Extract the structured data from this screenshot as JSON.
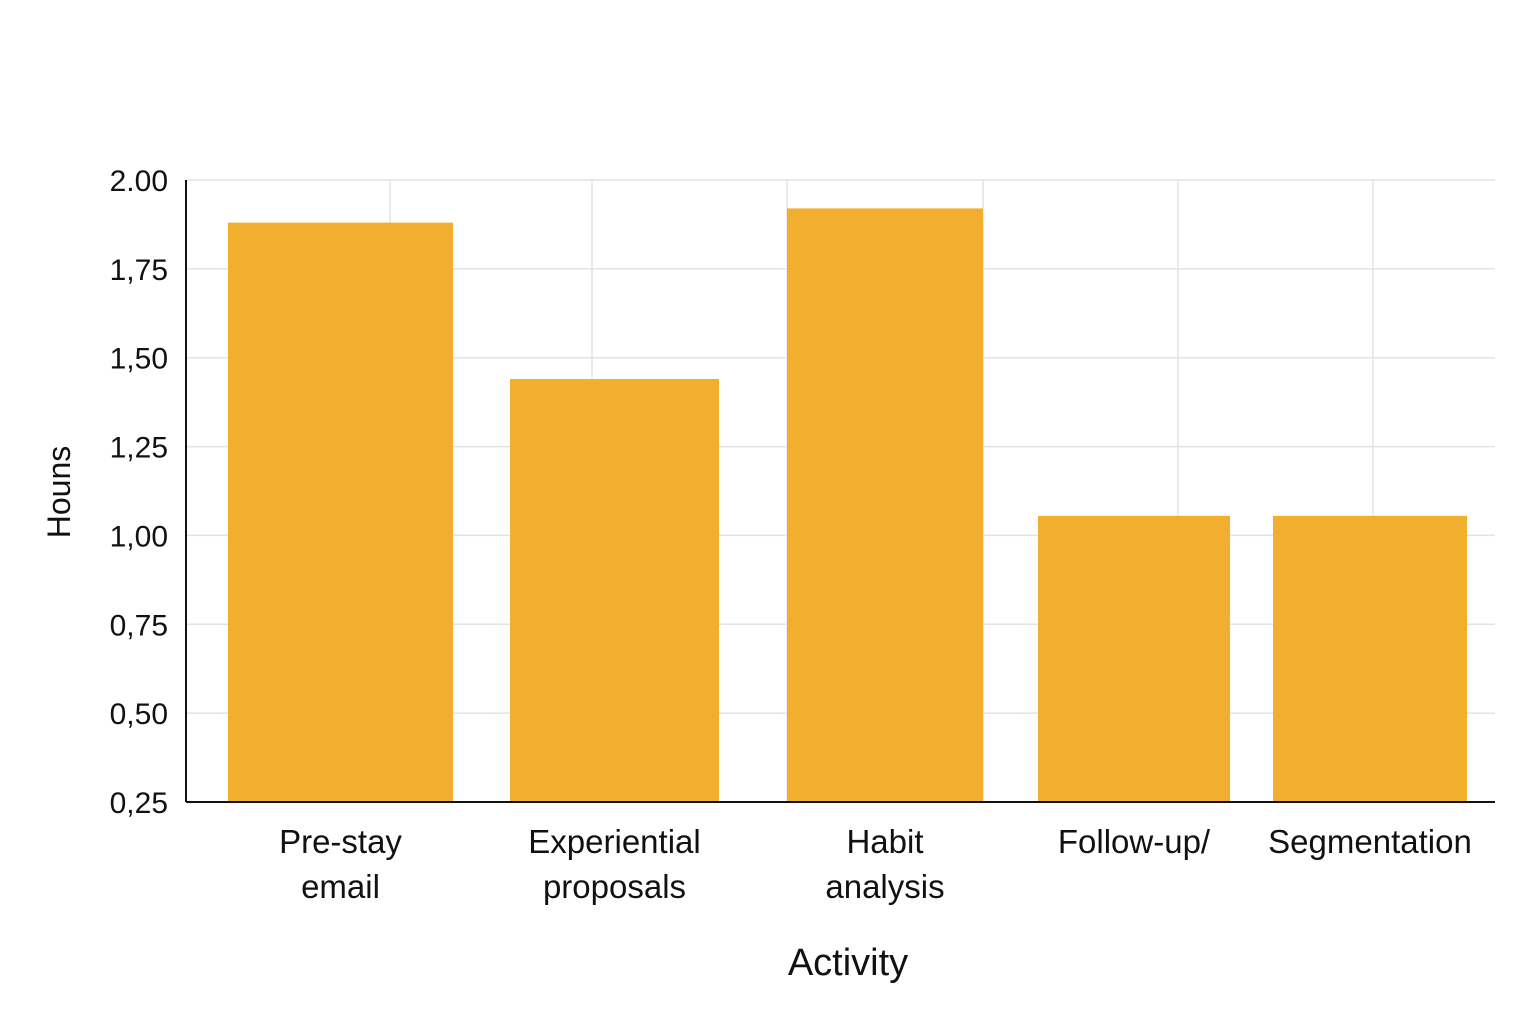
{
  "chart_data": {
    "type": "bar",
    "title": "",
    "xlabel": "Activity",
    "ylabel": "Houns",
    "categories": [
      [
        "Pre-stay",
        "email"
      ],
      [
        "Experiential",
        "proposals"
      ],
      [
        "Habit",
        "analysis"
      ],
      [
        "Follow-up/"
      ],
      [
        "Segmentation"
      ]
    ],
    "values": [
      1.88,
      1.44,
      1.92,
      1.055,
      1.055
    ],
    "ylim": [
      0.25,
      2.0
    ],
    "yticks": [
      {
        "value": 2.0,
        "label": "2.00"
      },
      {
        "value": 1.75,
        "label": "1,75"
      },
      {
        "value": 1.5,
        "label": "1,50"
      },
      {
        "value": 1.25,
        "label": "1,25"
      },
      {
        "value": 1.0,
        "label": "1,00"
      },
      {
        "value": 0.75,
        "label": "0,75"
      },
      {
        "value": 0.5,
        "label": "0,50"
      },
      {
        "value": 0.25,
        "label": "0,25"
      }
    ],
    "grid": true,
    "legend": "none",
    "bar_color": "#F2AE2E",
    "grid_color": "#E3E3E3",
    "axis_color": "#111111"
  }
}
